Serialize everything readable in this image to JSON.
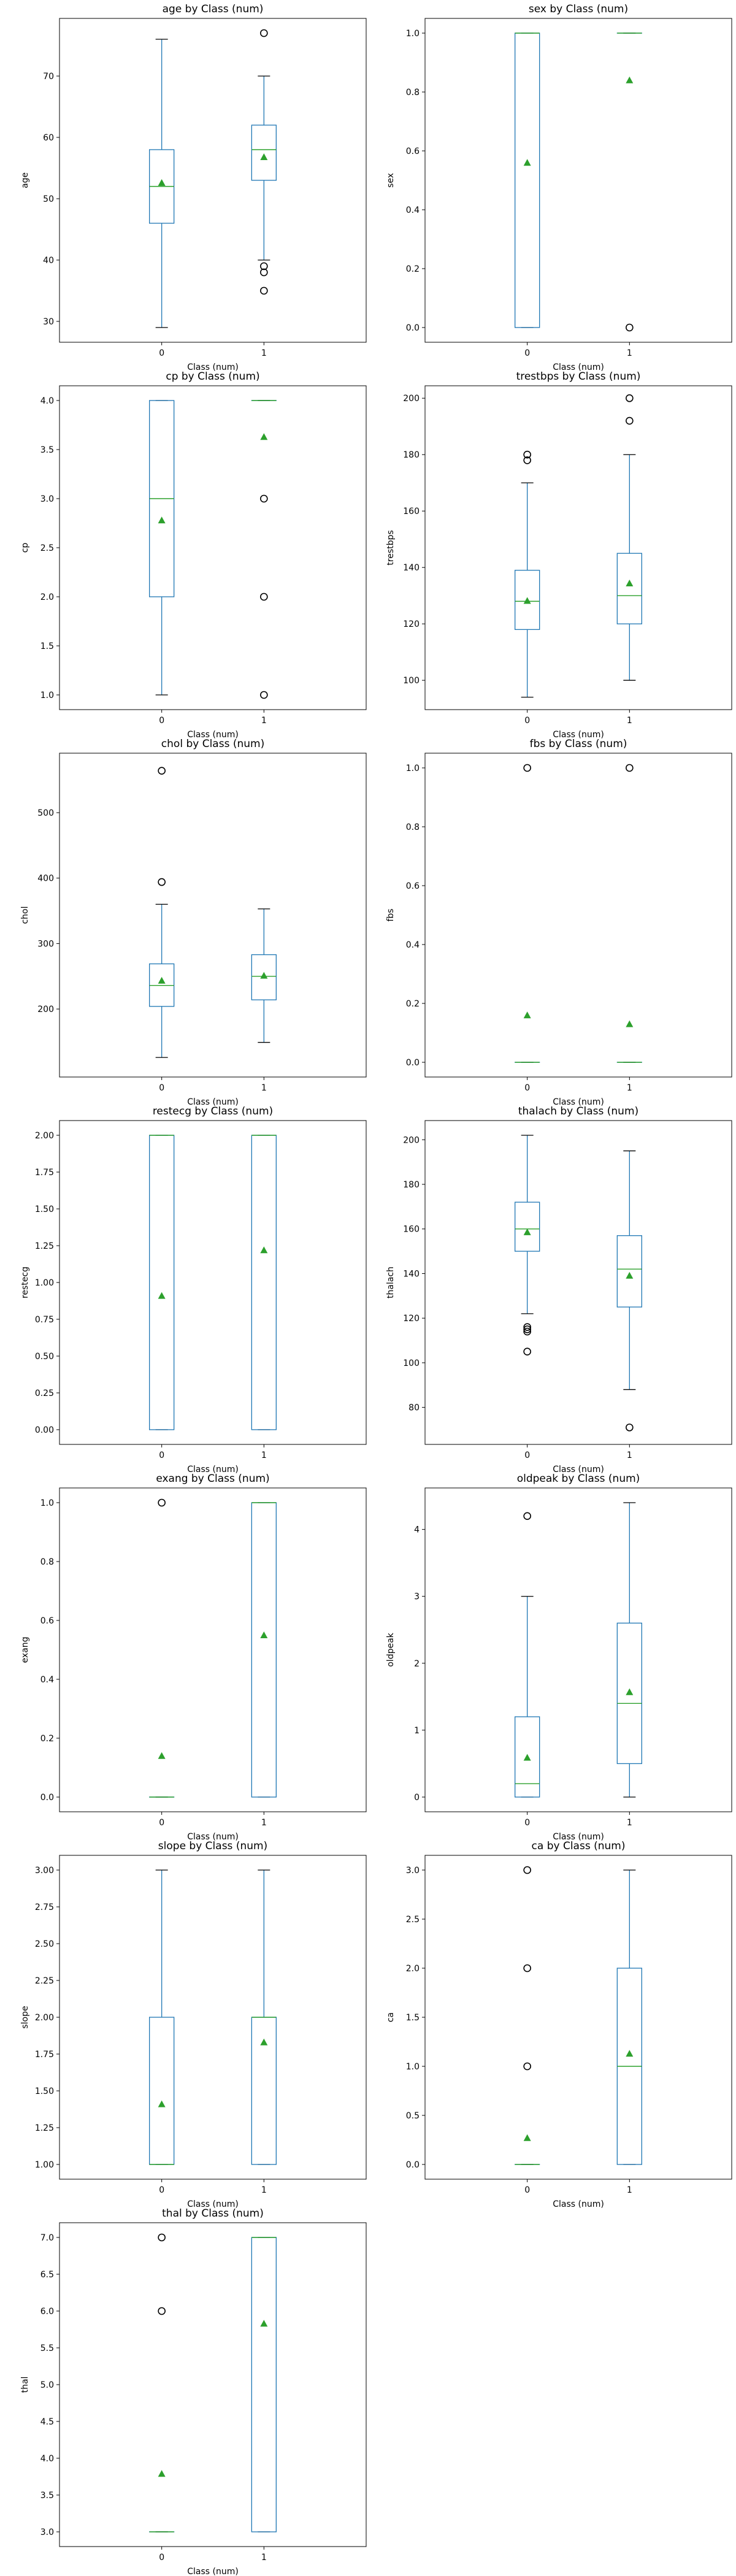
{
  "colors": {
    "box": "#1f77b4",
    "median": "#2ca02c",
    "mean_marker": "#2ca02c",
    "flier": "#000000",
    "axes": "#000000"
  },
  "chart_data": [
    {
      "type": "box",
      "title": "age by Class (num)",
      "xlabel": "Class (num)",
      "ylabel": "age",
      "categories": [
        "0",
        "1"
      ],
      "ylim": [
        26.6,
        79.4
      ],
      "yticks": [
        30,
        40,
        50,
        60,
        70
      ],
      "ytick_labels": [
        "30",
        "40",
        "50",
        "60",
        "70"
      ],
      "boxes": [
        {
          "category": "0",
          "whislo": 29,
          "q1": 46,
          "med": 52,
          "q3": 58,
          "whishi": 76,
          "mean": 52.6,
          "fliers": []
        },
        {
          "category": "1",
          "whislo": 40,
          "q1": 53,
          "med": 58,
          "q3": 62,
          "whishi": 70,
          "mean": 56.8,
          "fliers": [
            35,
            38,
            39,
            77
          ]
        }
      ]
    },
    {
      "type": "box",
      "title": "sex by Class (num)",
      "xlabel": "Class (num)",
      "ylabel": "sex",
      "categories": [
        "0",
        "1"
      ],
      "ylim": [
        -0.05,
        1.05
      ],
      "yticks": [
        0.0,
        0.2,
        0.4,
        0.6,
        0.8,
        1.0
      ],
      "ytick_labels": [
        "0.0",
        "0.2",
        "0.4",
        "0.6",
        "0.8",
        "1.0"
      ],
      "boxes": [
        {
          "category": "0",
          "whislo": 0,
          "q1": 0,
          "med": 1,
          "q3": 1,
          "whishi": 1,
          "mean": 0.56,
          "fliers": []
        },
        {
          "category": "1",
          "whislo": 1,
          "q1": 1,
          "med": 1,
          "q3": 1,
          "whishi": 1,
          "mean": 0.84,
          "fliers": [
            0
          ]
        }
      ]
    },
    {
      "type": "box",
      "title": "cp by Class (num)",
      "xlabel": "Class (num)",
      "ylabel": "cp",
      "categories": [
        "0",
        "1"
      ],
      "ylim": [
        0.85,
        4.15
      ],
      "yticks": [
        1.0,
        1.5,
        2.0,
        2.5,
        3.0,
        3.5,
        4.0
      ],
      "ytick_labels": [
        "1.0",
        "1.5",
        "2.0",
        "2.5",
        "3.0",
        "3.5",
        "4.0"
      ],
      "boxes": [
        {
          "category": "0",
          "whislo": 1,
          "q1": 2,
          "med": 3,
          "q3": 4,
          "whishi": 4,
          "mean": 2.78,
          "fliers": []
        },
        {
          "category": "1",
          "whislo": 4,
          "q1": 4,
          "med": 4,
          "q3": 4,
          "whishi": 4,
          "mean": 3.63,
          "fliers": [
            1,
            2,
            3
          ]
        }
      ]
    },
    {
      "type": "box",
      "title": "trestbps by Class (num)",
      "xlabel": "Class (num)",
      "ylabel": "trestbps",
      "categories": [
        "0",
        "1"
      ],
      "ylim": [
        89.6,
        204.4
      ],
      "yticks": [
        100,
        120,
        140,
        160,
        180,
        200
      ],
      "ytick_labels": [
        "100",
        "120",
        "140",
        "160",
        "180",
        "200"
      ],
      "boxes": [
        {
          "category": "0",
          "whislo": 94,
          "q1": 118,
          "med": 128,
          "q3": 139,
          "whishi": 170,
          "mean": 128.2,
          "fliers": [
            178,
            180
          ]
        },
        {
          "category": "1",
          "whislo": 100,
          "q1": 120,
          "med": 130,
          "q3": 145,
          "whishi": 180,
          "mean": 134.4,
          "fliers": [
            192,
            200
          ]
        }
      ]
    },
    {
      "type": "box",
      "title": "chol by Class (num)",
      "xlabel": "Class (num)",
      "ylabel": "chol",
      "categories": [
        "0",
        "1"
      ],
      "ylim": [
        96.1,
        590.9
      ],
      "yticks": [
        200,
        300,
        400,
        500
      ],
      "ytick_labels": [
        "200",
        "300",
        "400",
        "500"
      ],
      "boxes": [
        {
          "category": "0",
          "whislo": 126,
          "q1": 204,
          "med": 236,
          "q3": 269,
          "whishi": 360,
          "mean": 243.5,
          "fliers": [
            394,
            564
          ]
        },
        {
          "category": "1",
          "whislo": 149,
          "q1": 214,
          "med": 250,
          "q3": 283,
          "whishi": 353,
          "mean": 251.1,
          "fliers": []
        }
      ]
    },
    {
      "type": "box",
      "title": "fbs by Class (num)",
      "xlabel": "Class (num)",
      "ylabel": "fbs",
      "categories": [
        "0",
        "1"
      ],
      "ylim": [
        -0.05,
        1.05
      ],
      "yticks": [
        0.0,
        0.2,
        0.4,
        0.6,
        0.8,
        1.0
      ],
      "ytick_labels": [
        "0.0",
        "0.2",
        "0.4",
        "0.6",
        "0.8",
        "1.0"
      ],
      "boxes": [
        {
          "category": "0",
          "whislo": 0,
          "q1": 0,
          "med": 0,
          "q3": 0,
          "whishi": 0,
          "mean": 0.16,
          "fliers": [
            1
          ]
        },
        {
          "category": "1",
          "whislo": 0,
          "q1": 0,
          "med": 0,
          "q3": 0,
          "whishi": 0,
          "mean": 0.13,
          "fliers": [
            1
          ]
        }
      ]
    },
    {
      "type": "box",
      "title": "restecg by Class (num)",
      "xlabel": "Class (num)",
      "ylabel": "restecg",
      "categories": [
        "0",
        "1"
      ],
      "ylim": [
        -0.1,
        2.1
      ],
      "yticks": [
        0.0,
        0.25,
        0.5,
        0.75,
        1.0,
        1.25,
        1.5,
        1.75,
        2.0
      ],
      "ytick_labels": [
        "0.00",
        "0.25",
        "0.50",
        "0.75",
        "1.00",
        "1.25",
        "1.50",
        "1.75",
        "2.00"
      ],
      "boxes": [
        {
          "category": "0",
          "whislo": 0,
          "q1": 0,
          "med": 2,
          "q3": 2,
          "whishi": 2,
          "mean": 0.91,
          "fliers": []
        },
        {
          "category": "1",
          "whislo": 0,
          "q1": 0,
          "med": 2,
          "q3": 2,
          "whishi": 2,
          "mean": 1.22,
          "fliers": []
        }
      ]
    },
    {
      "type": "box",
      "title": "thalach by Class (num)",
      "xlabel": "Class (num)",
      "ylabel": "thalach",
      "categories": [
        "0",
        "1"
      ],
      "ylim": [
        63.4,
        208.6
      ],
      "yticks": [
        80,
        100,
        120,
        140,
        160,
        180,
        200
      ],
      "ytick_labels": [
        "80",
        "100",
        "120",
        "140",
        "160",
        "180",
        "200"
      ],
      "boxes": [
        {
          "category": "0",
          "whislo": 122,
          "q1": 150,
          "med": 160,
          "q3": 172,
          "whishi": 202,
          "mean": 158.6,
          "fliers": [
            105,
            114,
            115,
            116
          ]
        },
        {
          "category": "1",
          "whislo": 88,
          "q1": 125,
          "med": 142,
          "q3": 157,
          "whishi": 195,
          "mean": 139.1,
          "fliers": [
            71
          ]
        }
      ]
    },
    {
      "type": "box",
      "title": "exang by Class (num)",
      "xlabel": "Class (num)",
      "ylabel": "exang",
      "categories": [
        "0",
        "1"
      ],
      "ylim": [
        -0.05,
        1.05
      ],
      "yticks": [
        0.0,
        0.2,
        0.4,
        0.6,
        0.8,
        1.0
      ],
      "ytick_labels": [
        "0.0",
        "0.2",
        "0.4",
        "0.6",
        "0.8",
        "1.0"
      ],
      "boxes": [
        {
          "category": "0",
          "whislo": 0,
          "q1": 0,
          "med": 0,
          "q3": 0,
          "whishi": 0,
          "mean": 0.14,
          "fliers": [
            1
          ]
        },
        {
          "category": "1",
          "whislo": 0,
          "q1": 0,
          "med": 1,
          "q3": 1,
          "whishi": 1,
          "mean": 0.55,
          "fliers": []
        }
      ]
    },
    {
      "type": "box",
      "title": "oldpeak by Class (num)",
      "xlabel": "Class (num)",
      "ylabel": "oldpeak",
      "categories": [
        "0",
        "1"
      ],
      "ylim": [
        -0.22,
        4.62
      ],
      "yticks": [
        0,
        1,
        2,
        3,
        4
      ],
      "ytick_labels": [
        "0",
        "1",
        "2",
        "3",
        "4"
      ],
      "boxes": [
        {
          "category": "0",
          "whislo": 0,
          "q1": 0,
          "med": 0.2,
          "q3": 1.2,
          "whishi": 3.0,
          "mean": 0.59,
          "fliers": [
            4.2
          ]
        },
        {
          "category": "1",
          "whislo": 0,
          "q1": 0.5,
          "med": 1.4,
          "q3": 2.6,
          "whishi": 4.4,
          "mean": 1.57,
          "fliers": []
        }
      ]
    },
    {
      "type": "box",
      "title": "slope by Class (num)",
      "xlabel": "Class (num)",
      "ylabel": "slope",
      "categories": [
        "0",
        "1"
      ],
      "ylim": [
        0.9,
        3.1
      ],
      "yticks": [
        1.0,
        1.25,
        1.5,
        1.75,
        2.0,
        2.25,
        2.5,
        2.75,
        3.0
      ],
      "ytick_labels": [
        "1.00",
        "1.25",
        "1.50",
        "1.75",
        "2.00",
        "2.25",
        "2.50",
        "2.75",
        "3.00"
      ],
      "boxes": [
        {
          "category": "0",
          "whislo": 1,
          "q1": 1,
          "med": 1,
          "q3": 2,
          "whishi": 3,
          "mean": 1.41,
          "fliers": []
        },
        {
          "category": "1",
          "whislo": 1,
          "q1": 1,
          "med": 2,
          "q3": 2,
          "whishi": 3,
          "mean": 1.83,
          "fliers": []
        }
      ]
    },
    {
      "type": "box",
      "title": "ca by Class (num)",
      "xlabel": "Class (num)",
      "ylabel": "ca",
      "categories": [
        "0",
        "1"
      ],
      "ylim": [
        -0.15,
        3.15
      ],
      "yticks": [
        0.0,
        0.5,
        1.0,
        1.5,
        2.0,
        2.5,
        3.0
      ],
      "ytick_labels": [
        "0.0",
        "0.5",
        "1.0",
        "1.5",
        "2.0",
        "2.5",
        "3.0"
      ],
      "boxes": [
        {
          "category": "0",
          "whislo": 0,
          "q1": 0,
          "med": 0,
          "q3": 0,
          "whishi": 0,
          "mean": 0.27,
          "fliers": [
            1,
            2,
            3
          ]
        },
        {
          "category": "1",
          "whislo": 0,
          "q1": 0,
          "med": 1,
          "q3": 2,
          "whishi": 3,
          "mean": 1.13,
          "fliers": []
        }
      ]
    },
    {
      "type": "box",
      "title": "thal by Class (num)",
      "xlabel": "Class (num)",
      "ylabel": "thal",
      "categories": [
        "0",
        "1"
      ],
      "ylim": [
        2.8,
        7.2
      ],
      "yticks": [
        3.0,
        3.5,
        4.0,
        4.5,
        5.0,
        5.5,
        6.0,
        6.5,
        7.0
      ],
      "ytick_labels": [
        "3.0",
        "3.5",
        "4.0",
        "4.5",
        "5.0",
        "5.5",
        "6.0",
        "6.5",
        "7.0"
      ],
      "boxes": [
        {
          "category": "0",
          "whislo": 3,
          "q1": 3,
          "med": 3,
          "q3": 3,
          "whishi": 3,
          "mean": 3.79,
          "fliers": [
            6,
            7
          ]
        },
        {
          "category": "1",
          "whislo": 3,
          "q1": 3,
          "med": 7,
          "q3": 7,
          "whishi": 7,
          "mean": 5.83,
          "fliers": []
        }
      ]
    }
  ]
}
